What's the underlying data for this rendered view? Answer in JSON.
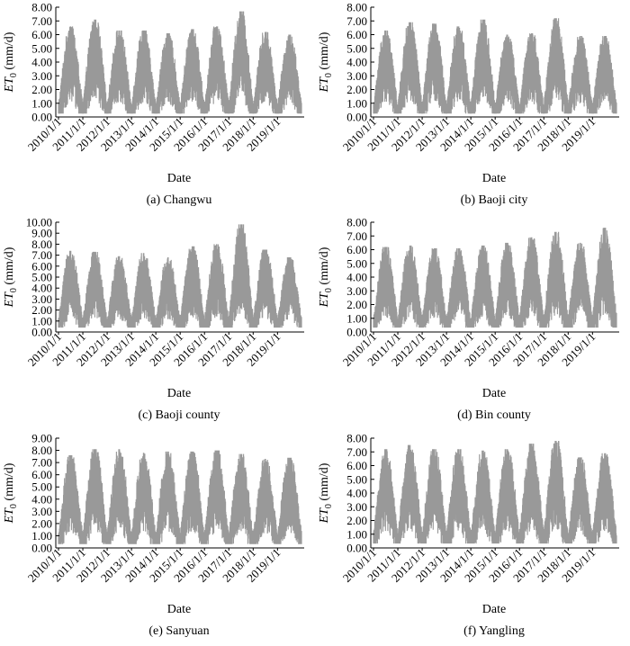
{
  "chart_data": [
    {
      "type": "line",
      "caption": "(a) Changwu",
      "xlabel": "Date",
      "ylabel_main": "ET",
      "ylabel_sub": "0",
      "ylabel_unit": " (mm/d)",
      "yticks": [
        "0.00",
        "1.00",
        "2.00",
        "3.00",
        "4.00",
        "5.00",
        "6.00",
        "7.00",
        "8.00"
      ],
      "ylim": [
        0,
        8
      ],
      "xticks": [
        "2010/1/1",
        "2011/1/1",
        "2012/1/1",
        "2013/1/1",
        "2014/1/1",
        "2015/1/1",
        "2016/1/1",
        "2017/1/1",
        "2018/1/1",
        "2019/1/1"
      ],
      "xlim": [
        "2010/1/1",
        "2019/12/31"
      ],
      "series_color": "#999999",
      "yearly_peaks": [
        6.6,
        7.1,
        6.3,
        6.3,
        6.1,
        6.4,
        6.6,
        7.7,
        6.2,
        6.0
      ],
      "yearly_min": 0.3
    },
    {
      "type": "line",
      "caption": "(b) Baoji city",
      "xlabel": "Date",
      "ylabel_main": "ET",
      "ylabel_sub": "0",
      "ylabel_unit": " (mm/d)",
      "yticks": [
        "0.00",
        "1.00",
        "2.00",
        "3.00",
        "4.00",
        "5.00",
        "6.00",
        "7.00",
        "8.00"
      ],
      "ylim": [
        0,
        8
      ],
      "xticks": [
        "2010/1/1",
        "2011/1/1",
        "2012/1/1",
        "2013/1/1",
        "2014/1/1",
        "2015/1/1",
        "2016/1/1",
        "2017/1/1",
        "2018/1/1",
        "2019/1/1"
      ],
      "xlim": [
        "2010/1/1",
        "2019/12/31"
      ],
      "series_color": "#999999",
      "yearly_peaks": [
        6.3,
        6.9,
        6.8,
        6.6,
        7.1,
        6.0,
        6.1,
        7.2,
        5.9,
        5.9
      ],
      "yearly_min": 0.3
    },
    {
      "type": "line",
      "caption": "(c) Baoji county",
      "xlabel": "Date",
      "ylabel_main": "ET",
      "ylabel_sub": "0",
      "ylabel_unit": " (mm/d)",
      "yticks": [
        "0.00",
        "1.00",
        "2.00",
        "3.00",
        "4.00",
        "5.00",
        "6.00",
        "7.00",
        "8.00",
        "9.00",
        "10.00"
      ],
      "ylim": [
        0,
        10
      ],
      "xticks": [
        "2010/1/1",
        "2011/1/1",
        "2012/1/1",
        "2013/1/1",
        "2014/1/1",
        "2015/1/1",
        "2016/1/1",
        "2017/1/1",
        "2018/1/1",
        "2019/1/1"
      ],
      "xlim": [
        "2010/1/1",
        "2019/12/31"
      ],
      "series_color": "#999999",
      "yearly_peaks": [
        7.4,
        7.3,
        6.9,
        7.2,
        6.8,
        7.8,
        8.0,
        9.8,
        7.5,
        6.8
      ],
      "yearly_min": 0.5
    },
    {
      "type": "line",
      "caption": "(d) Bin county",
      "xlabel": "Date",
      "ylabel_main": "ET",
      "ylabel_sub": "0",
      "ylabel_unit": " (mm/d)",
      "yticks": [
        "0.00",
        "1.00",
        "2.00",
        "3.00",
        "4.00",
        "5.00",
        "6.00",
        "7.00",
        "8.00"
      ],
      "ylim": [
        0,
        8
      ],
      "xticks": [
        "2010/1/1",
        "2011/1/1",
        "2012/1/1",
        "2013/1/1",
        "2014/1/1",
        "2015/1/1",
        "2016/1/1",
        "2017/1/1",
        "2018/1/1",
        "2019/1/1"
      ],
      "xlim": [
        "2010/1/1",
        "2019/12/31"
      ],
      "series_color": "#999999",
      "yearly_peaks": [
        6.2,
        6.3,
        6.1,
        6.1,
        6.3,
        6.5,
        6.9,
        7.3,
        6.5,
        7.6
      ],
      "yearly_min": 0.4
    },
    {
      "type": "line",
      "caption": "(e) Sanyuan",
      "xlabel": "Date",
      "ylabel_main": "ET",
      "ylabel_sub": "0",
      "ylabel_unit": " (mm/d)",
      "yticks": [
        "0.00",
        "1.00",
        "2.00",
        "3.00",
        "4.00",
        "5.00",
        "6.00",
        "7.00",
        "8.00",
        "9.00"
      ],
      "ylim": [
        0,
        9
      ],
      "xticks": [
        "2010/1/1",
        "2011/1/1",
        "2012/1/1",
        "2013/1/1",
        "2014/1/1",
        "2015/1/1",
        "2016/1/1",
        "2017/1/1",
        "2018/1/1",
        "2019/1/1"
      ],
      "xlim": [
        "2010/1/1",
        "2019/12/31"
      ],
      "series_color": "#999999",
      "yearly_peaks": [
        7.6,
        8.1,
        8.1,
        7.8,
        7.9,
        7.9,
        8.0,
        7.7,
        7.3,
        7.4
      ],
      "yearly_min": 0.4
    },
    {
      "type": "line",
      "caption": "(f) Yangling",
      "xlabel": "Date",
      "ylabel_main": "ET",
      "ylabel_sub": "0",
      "ylabel_unit": " (mm/d)",
      "yticks": [
        "0.00",
        "1.00",
        "2.00",
        "3.00",
        "4.00",
        "5.00",
        "6.00",
        "7.00",
        "8.00"
      ],
      "ylim": [
        0,
        8
      ],
      "xticks": [
        "2010/1/1",
        "2011/1/1",
        "2012/1/1",
        "2013/1/1",
        "2014/1/1",
        "2015/1/1",
        "2016/1/1",
        "2017/1/1",
        "2018/1/1",
        "2019/1/1"
      ],
      "xlim": [
        "2010/1/1",
        "2019/12/31"
      ],
      "series_color": "#999999",
      "yearly_peaks": [
        7.2,
        7.5,
        7.2,
        7.2,
        7.1,
        7.2,
        7.6,
        7.8,
        6.6,
        6.9
      ],
      "yearly_min": 0.4
    }
  ]
}
